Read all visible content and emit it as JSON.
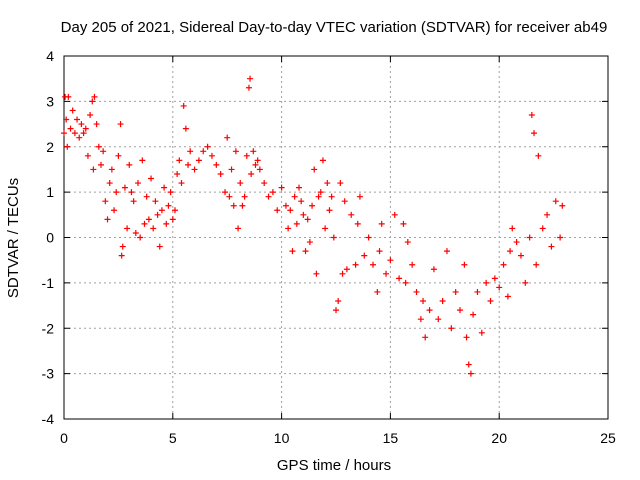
{
  "chart_data": {
    "type": "scatter",
    "title": "Day 205 of 2021, Sidereal Day-to-day VTEC variation (SDTVAR) for receiver ab49",
    "xlabel": "GPS time / hours",
    "ylabel": "SDTVAR / TECUs",
    "xlim": [
      0,
      25
    ],
    "ylim": [
      -4,
      4
    ],
    "x_ticks": [
      0,
      5,
      10,
      15,
      20,
      25
    ],
    "y_ticks": [
      -4,
      -3,
      -2,
      -1,
      0,
      1,
      2,
      3,
      4
    ],
    "x_tick_labels": [
      "0",
      "5",
      "10",
      "15",
      "20",
      "25"
    ],
    "y_tick_labels": [
      "-4",
      "-3",
      "-2",
      "-1",
      "0",
      "1",
      "2",
      "3",
      "4"
    ],
    "grid": true,
    "marker": "+",
    "marker_color": "#ff0000",
    "series": [
      {
        "name": "SDTVAR",
        "points": [
          [
            0.0,
            2.3
          ],
          [
            0.05,
            3.1
          ],
          [
            0.1,
            2.6
          ],
          [
            0.15,
            2.0
          ],
          [
            0.2,
            3.1
          ],
          [
            0.3,
            2.4
          ],
          [
            0.4,
            2.8
          ],
          [
            0.5,
            2.3
          ],
          [
            0.6,
            2.6
          ],
          [
            0.7,
            2.2
          ],
          [
            0.8,
            2.5
          ],
          [
            0.9,
            2.3
          ],
          [
            1.0,
            2.4
          ],
          [
            1.1,
            1.8
          ],
          [
            1.2,
            2.7
          ],
          [
            1.3,
            3.0
          ],
          [
            1.35,
            1.5
          ],
          [
            1.4,
            3.1
          ],
          [
            1.5,
            2.5
          ],
          [
            1.6,
            2.0
          ],
          [
            1.7,
            1.6
          ],
          [
            1.8,
            1.9
          ],
          [
            1.9,
            0.8
          ],
          [
            2.0,
            0.4
          ],
          [
            2.1,
            1.2
          ],
          [
            2.2,
            1.5
          ],
          [
            2.3,
            0.6
          ],
          [
            2.4,
            1.0
          ],
          [
            2.5,
            1.8
          ],
          [
            2.6,
            2.5
          ],
          [
            2.65,
            -0.4
          ],
          [
            2.7,
            -0.2
          ],
          [
            2.8,
            1.1
          ],
          [
            2.9,
            0.2
          ],
          [
            3.0,
            1.6
          ],
          [
            3.1,
            1.0
          ],
          [
            3.2,
            0.8
          ],
          [
            3.3,
            0.1
          ],
          [
            3.4,
            1.2
          ],
          [
            3.5,
            0.0
          ],
          [
            3.6,
            1.7
          ],
          [
            3.7,
            0.3
          ],
          [
            3.8,
            0.9
          ],
          [
            3.9,
            0.4
          ],
          [
            4.0,
            1.3
          ],
          [
            4.1,
            0.2
          ],
          [
            4.2,
            0.8
          ],
          [
            4.3,
            0.5
          ],
          [
            4.4,
            -0.2
          ],
          [
            4.5,
            0.6
          ],
          [
            4.6,
            1.1
          ],
          [
            4.7,
            0.3
          ],
          [
            4.8,
            0.7
          ],
          [
            4.9,
            1.0
          ],
          [
            5.0,
            0.4
          ],
          [
            5.1,
            0.6
          ],
          [
            5.2,
            1.4
          ],
          [
            5.3,
            1.7
          ],
          [
            5.4,
            1.2
          ],
          [
            5.5,
            2.9
          ],
          [
            5.6,
            2.4
          ],
          [
            5.7,
            1.6
          ],
          [
            5.8,
            1.9
          ],
          [
            6.0,
            1.5
          ],
          [
            6.2,
            1.7
          ],
          [
            6.4,
            1.9
          ],
          [
            6.6,
            2.0
          ],
          [
            6.8,
            1.8
          ],
          [
            7.0,
            1.6
          ],
          [
            7.2,
            1.4
          ],
          [
            7.4,
            1.0
          ],
          [
            7.5,
            2.2
          ],
          [
            7.6,
            0.9
          ],
          [
            7.7,
            1.5
          ],
          [
            7.8,
            0.7
          ],
          [
            7.9,
            1.9
          ],
          [
            8.0,
            0.2
          ],
          [
            8.1,
            1.2
          ],
          [
            8.2,
            0.7
          ],
          [
            8.3,
            0.9
          ],
          [
            8.4,
            1.8
          ],
          [
            8.5,
            3.3
          ],
          [
            8.55,
            3.5
          ],
          [
            8.6,
            1.4
          ],
          [
            8.7,
            1.9
          ],
          [
            8.8,
            1.6
          ],
          [
            8.9,
            1.7
          ],
          [
            9.0,
            1.5
          ],
          [
            9.2,
            1.2
          ],
          [
            9.4,
            0.9
          ],
          [
            9.6,
            1.0
          ],
          [
            9.8,
            0.6
          ],
          [
            10.0,
            1.1
          ],
          [
            10.2,
            0.7
          ],
          [
            10.3,
            0.2
          ],
          [
            10.4,
            0.6
          ],
          [
            10.5,
            -0.3
          ],
          [
            10.6,
            0.9
          ],
          [
            10.7,
            0.3
          ],
          [
            10.8,
            1.1
          ],
          [
            10.9,
            0.8
          ],
          [
            11.0,
            0.5
          ],
          [
            11.1,
            -0.3
          ],
          [
            11.2,
            0.4
          ],
          [
            11.3,
            -0.1
          ],
          [
            11.4,
            0.7
          ],
          [
            11.5,
            1.5
          ],
          [
            11.6,
            -0.8
          ],
          [
            11.7,
            0.9
          ],
          [
            11.8,
            1.0
          ],
          [
            11.9,
            1.7
          ],
          [
            12.0,
            0.2
          ],
          [
            12.1,
            1.2
          ],
          [
            12.2,
            0.6
          ],
          [
            12.3,
            0.9
          ],
          [
            12.4,
            0.0
          ],
          [
            12.5,
            -1.6
          ],
          [
            12.6,
            -1.4
          ],
          [
            12.7,
            1.2
          ],
          [
            12.8,
            -0.8
          ],
          [
            12.9,
            0.8
          ],
          [
            13.0,
            -0.7
          ],
          [
            13.2,
            0.5
          ],
          [
            13.4,
            -0.6
          ],
          [
            13.5,
            0.3
          ],
          [
            13.6,
            0.9
          ],
          [
            13.8,
            -0.4
          ],
          [
            14.0,
            0.0
          ],
          [
            14.2,
            -0.6
          ],
          [
            14.4,
            -1.2
          ],
          [
            14.5,
            -0.3
          ],
          [
            14.6,
            0.3
          ],
          [
            14.8,
            -0.8
          ],
          [
            15.0,
            -0.5
          ],
          [
            15.2,
            0.5
          ],
          [
            15.4,
            -0.9
          ],
          [
            15.6,
            0.3
          ],
          [
            15.7,
            -1.0
          ],
          [
            15.8,
            -0.1
          ],
          [
            16.0,
            -0.6
          ],
          [
            16.2,
            -1.2
          ],
          [
            16.4,
            -1.8
          ],
          [
            16.5,
            -1.4
          ],
          [
            16.6,
            -2.2
          ],
          [
            16.8,
            -1.6
          ],
          [
            17.0,
            -0.7
          ],
          [
            17.2,
            -1.8
          ],
          [
            17.4,
            -1.4
          ],
          [
            17.6,
            -0.3
          ],
          [
            17.8,
            -2.0
          ],
          [
            18.0,
            -1.2
          ],
          [
            18.2,
            -1.6
          ],
          [
            18.4,
            -0.6
          ],
          [
            18.5,
            -2.2
          ],
          [
            18.6,
            -2.8
          ],
          [
            18.7,
            -3.0
          ],
          [
            18.8,
            -1.7
          ],
          [
            19.0,
            -1.2
          ],
          [
            19.2,
            -2.1
          ],
          [
            19.4,
            -1.0
          ],
          [
            19.6,
            -1.4
          ],
          [
            19.8,
            -0.9
          ],
          [
            20.0,
            -1.1
          ],
          [
            20.2,
            -0.6
          ],
          [
            20.4,
            -1.3
          ],
          [
            20.5,
            -0.3
          ],
          [
            20.6,
            0.2
          ],
          [
            20.8,
            -0.1
          ],
          [
            21.0,
            -0.4
          ],
          [
            21.2,
            -1.0
          ],
          [
            21.4,
            0.0
          ],
          [
            21.5,
            2.7
          ],
          [
            21.6,
            2.3
          ],
          [
            21.7,
            -0.6
          ],
          [
            21.8,
            1.8
          ],
          [
            22.0,
            0.2
          ],
          [
            22.2,
            0.5
          ],
          [
            22.4,
            -0.2
          ],
          [
            22.6,
            0.8
          ],
          [
            22.8,
            0.0
          ],
          [
            22.9,
            0.7
          ]
        ]
      }
    ]
  }
}
